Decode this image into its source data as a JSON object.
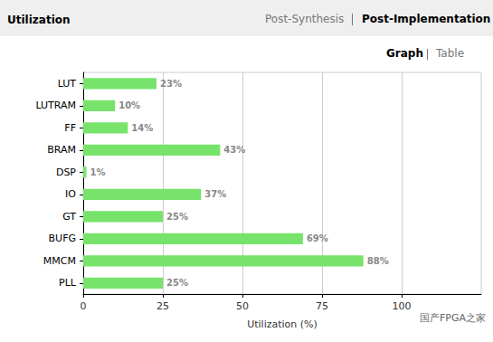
{
  "chart_data": {
    "type": "bar",
    "title": "Utilization",
    "orientation": "horizontal",
    "categories": [
      "LUT",
      "LUTRAM",
      "FF",
      "BRAM",
      "DSP",
      "IO",
      "GT",
      "BUFG",
      "MMCM",
      "PLL"
    ],
    "values": [
      23,
      10,
      14,
      43,
      1,
      37,
      25,
      69,
      88,
      25
    ],
    "value_labels": [
      "23%",
      "10%",
      "14%",
      "43%",
      "1%",
      "37%",
      "25%",
      "69%",
      "88%",
      "25%"
    ],
    "data_labels": true,
    "color": "#77e36b",
    "x_label": "Utilization (%)",
    "xlim": [
      0,
      125
    ],
    "xticks": [
      0,
      25,
      50,
      75,
      100
    ],
    "grid": true,
    "annotations": [
      "Post-Synthesis",
      "Post-Implementation",
      "Graph",
      "Table",
      "国产FPGA之家"
    ]
  }
}
